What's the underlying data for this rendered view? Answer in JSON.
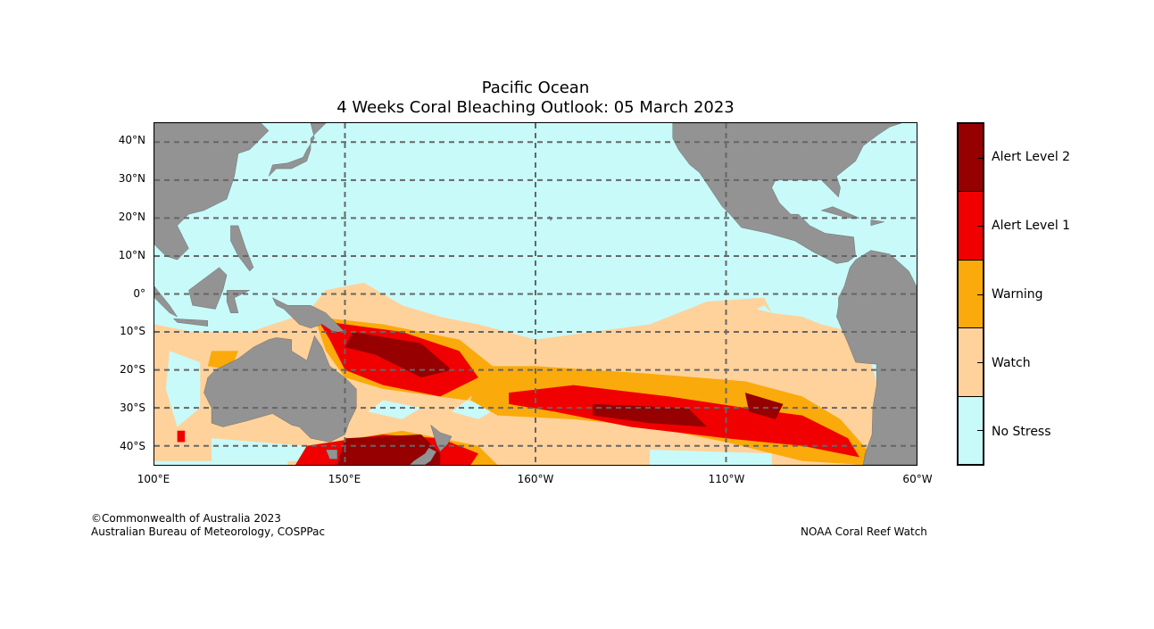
{
  "title": {
    "line1": "Pacific Ocean",
    "line2": "4 Weeks Coral Bleaching Outlook: 05 March 2023"
  },
  "axes": {
    "lat_labels": [
      "40°N",
      "30°N",
      "20°N",
      "10°N",
      "0°",
      "10°S",
      "20°S",
      "30°S",
      "40°S"
    ],
    "lat_values": [
      40,
      30,
      20,
      10,
      0,
      -10,
      -20,
      -30,
      -40
    ],
    "lon_labels": [
      "100°E",
      "150°E",
      "160°W",
      "110°W",
      "60°W"
    ],
    "lon_values": [
      100,
      150,
      200,
      250,
      300
    ],
    "lat_range": [
      -45,
      45
    ],
    "lon_range": [
      100,
      300
    ]
  },
  "legend": [
    {
      "label": "Alert Level 2",
      "color": "#960000"
    },
    {
      "label": "Alert Level 1",
      "color": "#f00000"
    },
    {
      "label": "Warning",
      "color": "#faaa0a"
    },
    {
      "label": "Watch",
      "color": "#ffd29b"
    },
    {
      "label": "No Stress",
      "color": "#c8fafa"
    }
  ],
  "colors": {
    "land": "#939393",
    "ocean": "#c8fafa"
  },
  "footer": {
    "left_line1": "©Commonwealth of Australia 2023",
    "left_line2": "Australian Bureau of Meteorology, COSPPac",
    "right": "NOAA Coral Reef Watch"
  }
}
